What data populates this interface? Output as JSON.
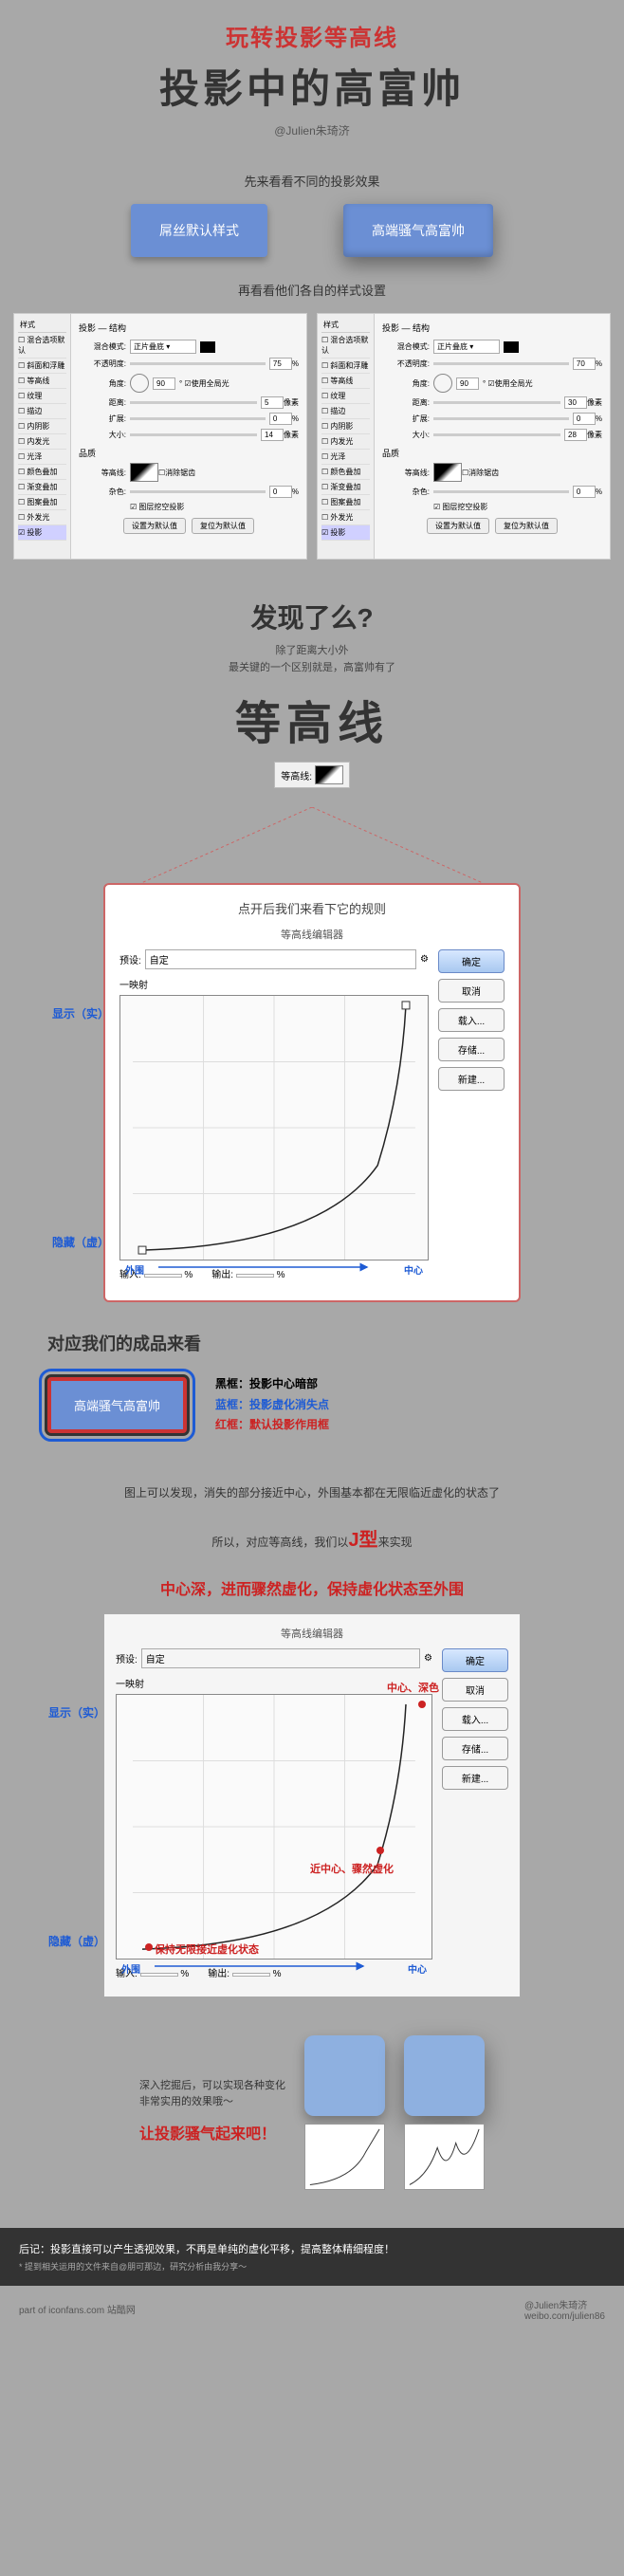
{
  "header": {
    "title_red": "玩转投影等高线",
    "title_main": "投影中的高富帅",
    "author": "@Julien朱琦济"
  },
  "section1_label": "先来看看不同的投影效果",
  "buttons": {
    "left": "屌丝默认样式",
    "right": "高端骚气高富帅"
  },
  "section2_label": "再看看他们各自的样式设置",
  "panel": {
    "side_header": "样式",
    "side_items": [
      "混合选项默认",
      "斜面和浮雕",
      "等高线",
      "纹理",
      "描边",
      "内阴影",
      "内发光",
      "光泽",
      "颜色叠加",
      "渐变叠加",
      "图案叠加",
      "外发光",
      "投影"
    ],
    "blend_mode": "混合模式:",
    "blend_val": "正片叠底",
    "opacity": "不透明度:",
    "opacity_val_l": "75",
    "opacity_val_r": "70",
    "angle": "角度:",
    "angle_val": "90",
    "global": "使用全局光",
    "distance": "距离:",
    "distance_val_l": "5",
    "distance_val_r": "30",
    "px": "像素",
    "spread": "扩展:",
    "spread_val": "0",
    "size": "大小:",
    "size_val_l": "14",
    "size_val_r": "28",
    "contour": "等高线:",
    "anti_alias": "消除锯齿",
    "noise": "杂色:",
    "noise_val": "0",
    "knockout": "图层挖空投影",
    "default_btn": "设置为默认值",
    "reset_btn": "复位为默认值"
  },
  "discover": {
    "question": "发现了么?",
    "sub1": "除了距离大小外",
    "sub2": "最关键的一个区别就是，高富帅有了",
    "big": "等高线",
    "label": "等高线:"
  },
  "editor": {
    "title": "点开后我们来看下它的规则",
    "panel_title": "等高线编辑器",
    "preset": "预设:",
    "preset_val": "自定",
    "mapping": "一映射",
    "btn_ok": "确定",
    "btn_cancel": "取消",
    "btn_load": "载入...",
    "btn_save": "存储...",
    "btn_new": "新建...",
    "input": "输入:",
    "output": "输出:",
    "show": "显示（实）",
    "hide": "隐藏（虚）",
    "outer": "外围",
    "center": "中心",
    "pct": "%"
  },
  "product": {
    "title": "对应我们的成品来看",
    "btn": "高端骚气高富帅",
    "legend_black": "黑框：投影中心暗部",
    "legend_blue": "蓝框：投影虚化消失点",
    "legend_red": "红框：默认投影作用框"
  },
  "desc1": "图上可以发现，消失的部分接近中心，外围基本都在无限临近虚化的状态了",
  "desc2_a": "所以，对应等高线，我们以",
  "desc2_j": "J型",
  "desc2_b": "来实现",
  "red_stmt": "中心深，进而骤然虚化，保持虚化状态至外围",
  "editor2": {
    "a_top": "中心、深色",
    "a_mid": "近中心、骤然虚化",
    "a_bot": "保持无限接近虚化状态"
  },
  "var": {
    "line1": "深入挖掘后，可以实现各种变化",
    "line2": "非常实用的效果哦～",
    "slogan": "让投影骚气起来吧！"
  },
  "footer": {
    "main": "后记：投影直接可以产生透视效果，不再是单纯的虚化平移，提高整体精细程度！",
    "sub": "* 提到相关运用的文件来自@朋可那边，研究分析由我分享～"
  },
  "credits": {
    "left": "part of iconfans.com 站酷网",
    "right1": "@Julien朱琦济",
    "right2": "weibo.com/julien86"
  },
  "colors": {
    "blue": "#6b8fd4",
    "red": "#cc2222",
    "bg": "#a8a8a8"
  }
}
